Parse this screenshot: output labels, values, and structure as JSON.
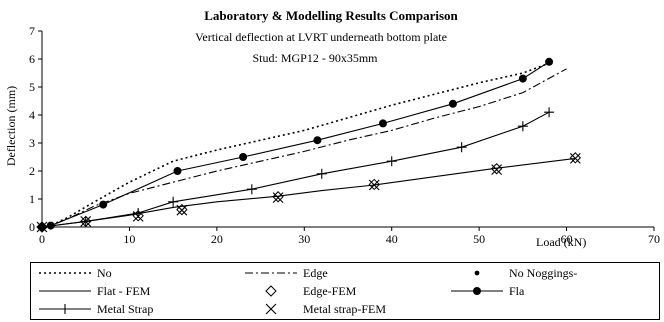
{
  "chart_data": {
    "type": "line",
    "title": "Laboratory & Modelling Results Comparison",
    "subtitle": "Vertical deflection at LVRT underneath bottom plate",
    "subtitle2": "Stud: MGP12 - 90x35mm",
    "xlabel": "Load (kN)",
    "ylabel": "Deflection (mm)",
    "xlim": [
      0,
      70
    ],
    "ylim": [
      0,
      7
    ],
    "xticks": [
      "0",
      "10",
      "20",
      "30",
      "40",
      "50",
      "60",
      "70"
    ],
    "yticks": [
      "0",
      "1",
      "2",
      "3",
      "4",
      "5",
      "6",
      "7"
    ],
    "grid": false,
    "legend_position": "bottom",
    "series": [
      {
        "name": "No",
        "style": "dotted",
        "marker": "none",
        "color": "#000000",
        "points": [
          [
            0,
            0
          ],
          [
            1,
            0.05
          ],
          [
            3,
            0.35
          ],
          [
            6,
            0.9
          ],
          [
            10,
            1.6
          ],
          [
            15,
            2.35
          ],
          [
            20,
            2.75
          ],
          [
            25,
            3.1
          ],
          [
            30,
            3.45
          ],
          [
            35,
            3.9
          ],
          [
            40,
            4.35
          ],
          [
            45,
            4.75
          ],
          [
            50,
            5.15
          ],
          [
            55,
            5.5
          ],
          [
            58,
            5.85
          ]
        ]
      },
      {
        "name": "Edge",
        "style": "dashdot",
        "marker": "none",
        "color": "#000000",
        "points": [
          [
            0,
            0
          ],
          [
            1,
            0.05
          ],
          [
            3,
            0.3
          ],
          [
            6,
            0.75
          ],
          [
            10,
            1.2
          ],
          [
            15,
            1.6
          ],
          [
            20,
            2.0
          ],
          [
            25,
            2.35
          ],
          [
            30,
            2.7
          ],
          [
            35,
            3.1
          ],
          [
            40,
            3.45
          ],
          [
            45,
            3.9
          ],
          [
            50,
            4.3
          ],
          [
            55,
            4.8
          ],
          [
            60,
            5.65
          ]
        ]
      },
      {
        "name": "No Noggings-",
        "style": "none",
        "marker": "dot",
        "color": "#000000",
        "points": []
      },
      {
        "name": "Flat - FEM",
        "style": "solid",
        "marker": "none",
        "color": "#000000",
        "points": [
          [
            0,
            0
          ],
          [
            5,
            0.2
          ],
          [
            10,
            0.42
          ],
          [
            15,
            0.7
          ],
          [
            20,
            0.9
          ],
          [
            27,
            1.1
          ],
          [
            32,
            1.3
          ],
          [
            38,
            1.5
          ],
          [
            45,
            1.8
          ],
          [
            52,
            2.1
          ],
          [
            61,
            2.45
          ]
        ]
      },
      {
        "name": "Edge-FEM",
        "style": "none",
        "marker": "diamond",
        "color": "#000000",
        "points": [
          [
            0,
            0
          ],
          [
            5,
            0.2
          ],
          [
            11,
            0.4
          ],
          [
            16,
            0.62
          ],
          [
            27,
            1.08
          ],
          [
            38,
            1.52
          ],
          [
            52,
            2.08
          ],
          [
            61,
            2.47
          ]
        ]
      },
      {
        "name": "Fla",
        "style": "solid",
        "marker": "circle",
        "color": "#000000",
        "points": [
          [
            0,
            0
          ],
          [
            1,
            0.05
          ],
          [
            7,
            0.8
          ],
          [
            15.5,
            2.0
          ],
          [
            23,
            2.5
          ],
          [
            31.5,
            3.1
          ],
          [
            39,
            3.7
          ],
          [
            47,
            4.4
          ],
          [
            55,
            5.3
          ],
          [
            58,
            5.9
          ]
        ]
      },
      {
        "name": "Metal Strap",
        "style": "solid",
        "marker": "plus",
        "color": "#000000",
        "points": [
          [
            0,
            0
          ],
          [
            5,
            0.2
          ],
          [
            11,
            0.5
          ],
          [
            15,
            0.9
          ],
          [
            24,
            1.35
          ],
          [
            32,
            1.9
          ],
          [
            40,
            2.35
          ],
          [
            48,
            2.85
          ],
          [
            55,
            3.6
          ],
          [
            58,
            4.1
          ]
        ]
      },
      {
        "name": "Metal strap-FEM",
        "style": "none",
        "marker": "cross",
        "color": "#000000",
        "points": [
          [
            0,
            0
          ],
          [
            5,
            0.2
          ],
          [
            11,
            0.38
          ],
          [
            16,
            0.6
          ],
          [
            27,
            1.05
          ],
          [
            38,
            1.5
          ],
          [
            52,
            2.05
          ],
          [
            61,
            2.45
          ]
        ]
      }
    ]
  }
}
